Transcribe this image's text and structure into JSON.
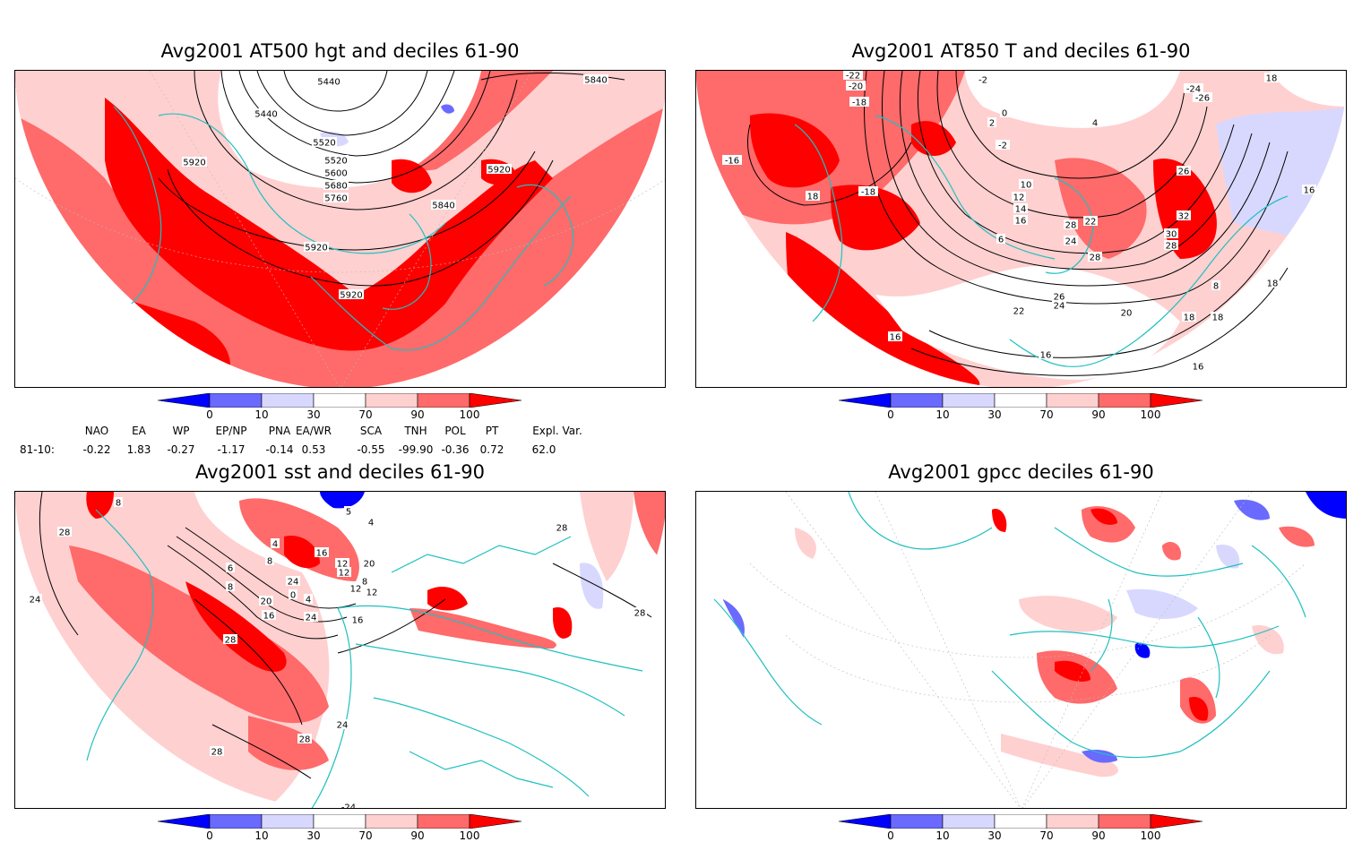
{
  "panels": [
    {
      "id": "p1",
      "title": "Avg2001 AT500 hgt and deciles 61-90",
      "contour_labels": [
        "5440",
        "5440",
        "5520",
        "5520",
        "5600",
        "5680",
        "5760",
        "5840",
        "5840",
        "5920",
        "5920",
        "5920",
        "5920"
      ]
    },
    {
      "id": "p2",
      "title": "Avg2001 AT850 T and deciles 61-90",
      "contour_labels": [
        "-22",
        "-20",
        "-18",
        "-16",
        "-18",
        "-2",
        "2",
        "0",
        "4",
        "-2",
        "-24",
        "-26",
        "18",
        "16",
        "18",
        "16",
        "8",
        "10",
        "12",
        "14",
        "16",
        "6",
        "22",
        "24",
        "28",
        "26",
        "32",
        "30",
        "28",
        "28",
        "26",
        "24",
        "22",
        "20",
        "18",
        "16",
        "18",
        "18",
        "16"
      ]
    },
    {
      "id": "p3",
      "title": "Avg2001 sst and deciles 61-90",
      "contour_labels": [
        "28",
        "24",
        "28",
        "28",
        "24",
        "28",
        "28",
        "28",
        "-24",
        "8",
        "4",
        "6",
        "8",
        "16",
        "12",
        "20",
        "24",
        "0",
        "4",
        "8",
        "12",
        "16",
        "12",
        "16",
        "20",
        "24",
        "8",
        "5",
        "4",
        "12"
      ]
    },
    {
      "id": "p4",
      "title": "Avg2001 gpcc deciles 61-90",
      "contour_labels": []
    }
  ],
  "colorbar": {
    "labels": [
      "0",
      "10",
      "30",
      "70",
      "90",
      "100"
    ],
    "colors": [
      "#0000ff",
      "#6a6aff",
      "#d8d8ff",
      "#ffffff",
      "#ffd0d0",
      "#ff6a6a",
      "#ff0000"
    ]
  },
  "indices": {
    "headers": [
      "NAO",
      "EA",
      "WP",
      "EP/NP",
      "PNA",
      "EA/WR",
      "SCA",
      "TNH",
      "POL",
      "PT",
      "Expl. Var."
    ],
    "row_label": "81-10:",
    "values": [
      "-0.22",
      "1.83",
      "-0.27",
      "-1.17",
      "-0.14",
      "0.53",
      "-0.55",
      "-99.90",
      "-0.36",
      "0.72",
      "62.0"
    ]
  }
}
